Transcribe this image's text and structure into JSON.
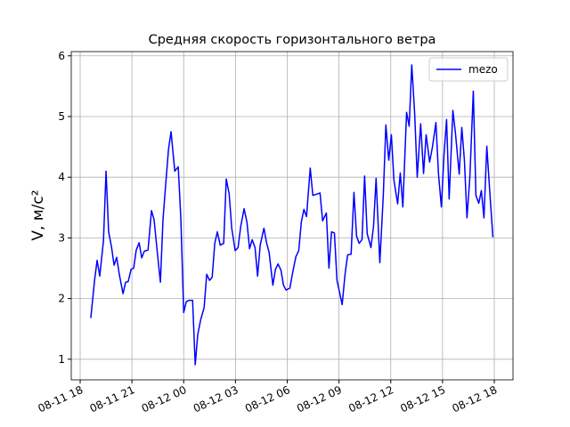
{
  "chart_data": {
    "type": "line",
    "title": "Средняя скорость горизонтального ветра",
    "ylabel": "V, м/с²",
    "x": [
      "08-11 18:37",
      "08-11 18:50",
      "08-11 18:59",
      "08-11 19:08",
      "08-11 19:21",
      "08-11 19:30",
      "08-11 19:39",
      "08-11 19:49",
      "08-11 19:58",
      "08-11 20:07",
      "08-11 20:16",
      "08-11 20:29",
      "08-11 20:38",
      "08-11 20:47",
      "08-11 20:57",
      "08-11 21:06",
      "08-11 21:15",
      "08-11 21:25",
      "08-11 21:34",
      "08-11 21:43",
      "08-11 21:56",
      "08-11 22:08",
      "08-11 22:17",
      "08-11 22:27",
      "08-11 22:39",
      "08-11 22:48",
      "08-11 22:58",
      "08-11 23:07",
      "08-11 23:16",
      "08-11 23:29",
      "08-11 23:41",
      "08-11 23:50",
      "08-12 00:00",
      "08-12 00:09",
      "08-12 00:18",
      "08-12 00:31",
      "08-12 00:40",
      "08-12 00:49",
      "08-12 00:59",
      "08-12 01:11",
      "08-12 01:20",
      "08-12 01:30",
      "08-12 01:39",
      "08-12 01:48",
      "08-12 01:57",
      "08-12 02:07",
      "08-12 02:19",
      "08-12 02:28",
      "08-12 02:38",
      "08-12 02:47",
      "08-12 02:59",
      "08-12 03:09",
      "08-12 03:18",
      "08-12 03:30",
      "08-12 03:40",
      "08-12 03:49",
      "08-12 03:58",
      "08-12 04:08",
      "08-12 04:17",
      "08-12 04:26",
      "08-12 04:39",
      "08-12 04:48",
      "08-12 04:57",
      "08-12 05:10",
      "08-12 05:19",
      "08-12 05:28",
      "08-12 05:38",
      "08-12 05:47",
      "08-12 05:56",
      "08-12 06:09",
      "08-12 06:21",
      "08-12 06:30",
      "08-12 06:40",
      "08-12 06:49",
      "08-12 06:58",
      "08-12 07:07",
      "08-12 07:20",
      "08-12 07:29",
      "08-12 07:42",
      "08-12 07:54",
      "08-12 08:03",
      "08-12 08:16",
      "08-12 08:25",
      "08-12 08:34",
      "08-12 08:44",
      "08-12 08:53",
      "08-12 09:02",
      "08-12 09:11",
      "08-12 09:21",
      "08-12 09:30",
      "08-12 09:42",
      "08-12 09:52",
      "08-12 10:01",
      "08-12 10:10",
      "08-12 10:20",
      "08-12 10:29",
      "08-12 10:38",
      "08-12 10:51",
      "08-12 11:00",
      "08-12 11:09",
      "08-12 11:22",
      "08-12 11:34",
      "08-12 11:43",
      "08-12 11:53",
      "08-12 12:02",
      "08-12 12:11",
      "08-12 12:24",
      "08-12 12:33",
      "08-12 12:42",
      "08-12 12:55",
      "08-12 13:04",
      "08-12 13:13",
      "08-12 13:23",
      "08-12 13:32",
      "08-12 13:44",
      "08-12 13:54",
      "08-12 14:03",
      "08-12 14:15",
      "08-12 14:25",
      "08-12 14:37",
      "08-12 14:46",
      "08-12 14:56",
      "08-12 15:05",
      "08-12 15:14",
      "08-12 15:23",
      "08-12 15:36",
      "08-12 15:45",
      "08-12 15:58",
      "08-12 16:07",
      "08-12 16:16",
      "08-12 16:25",
      "08-12 16:35",
      "08-12 16:47",
      "08-12 16:56",
      "08-12 17:06",
      "08-12 17:15",
      "08-12 17:24",
      "08-12 17:34",
      "08-12 17:43",
      "08-12 17:55"
    ],
    "series": [
      {
        "name": "mezo",
        "color": "#0000ff",
        "values": [
          1.68,
          2.3,
          2.63,
          2.37,
          2.95,
          4.1,
          3.1,
          2.85,
          2.55,
          2.68,
          2.4,
          2.08,
          2.27,
          2.28,
          2.48,
          2.5,
          2.8,
          2.92,
          2.67,
          2.78,
          2.8,
          3.45,
          3.3,
          2.82,
          2.27,
          3.3,
          3.92,
          4.45,
          4.75,
          4.1,
          4.17,
          3.33,
          1.77,
          1.95,
          1.97,
          1.97,
          0.91,
          1.41,
          1.65,
          1.85,
          2.4,
          2.3,
          2.35,
          2.91,
          3.1,
          2.88,
          2.91,
          3.97,
          3.73,
          3.16,
          2.79,
          2.84,
          3.18,
          3.48,
          3.26,
          2.82,
          2.97,
          2.84,
          2.37,
          2.88,
          3.16,
          2.92,
          2.76,
          2.22,
          2.48,
          2.57,
          2.47,
          2.22,
          2.14,
          2.17,
          2.48,
          2.69,
          2.79,
          3.26,
          3.47,
          3.35,
          4.15,
          3.7,
          3.72,
          3.74,
          3.28,
          3.41,
          2.5,
          3.1,
          3.08,
          2.3,
          2.1,
          1.9,
          2.4,
          2.72,
          2.73,
          3.75,
          3.03,
          2.91,
          2.97,
          4.02,
          3.07,
          2.84,
          3.19,
          3.98,
          2.59,
          3.7,
          4.86,
          4.28,
          4.7,
          3.95,
          3.56,
          4.07,
          3.51,
          5.07,
          4.84,
          5.85,
          5.06,
          4,
          4.88,
          4.06,
          4.7,
          4.25,
          4.5,
          4.9,
          4.05,
          3.51,
          4.36,
          4.95,
          3.64,
          5.1,
          4.72,
          4.05,
          4.82,
          4.28,
          3.33,
          4,
          5.42,
          3.7,
          3.57,
          3.78,
          3.33,
          4.51,
          3.85,
          3.01
        ]
      }
    ],
    "xlim": [
      "08-11 17:29",
      "08-12 19:05"
    ],
    "xticks": [
      "08-11 18",
      "08-11 21",
      "08-12 00",
      "08-12 03",
      "08-12 06",
      "08-12 09",
      "08-12 12",
      "08-12 15",
      "08-12 18"
    ],
    "ylim": [
      0.66,
      6.07
    ],
    "yticks": [
      1,
      2,
      3,
      4,
      5,
      6
    ],
    "grid": true,
    "legend": "upper right"
  }
}
